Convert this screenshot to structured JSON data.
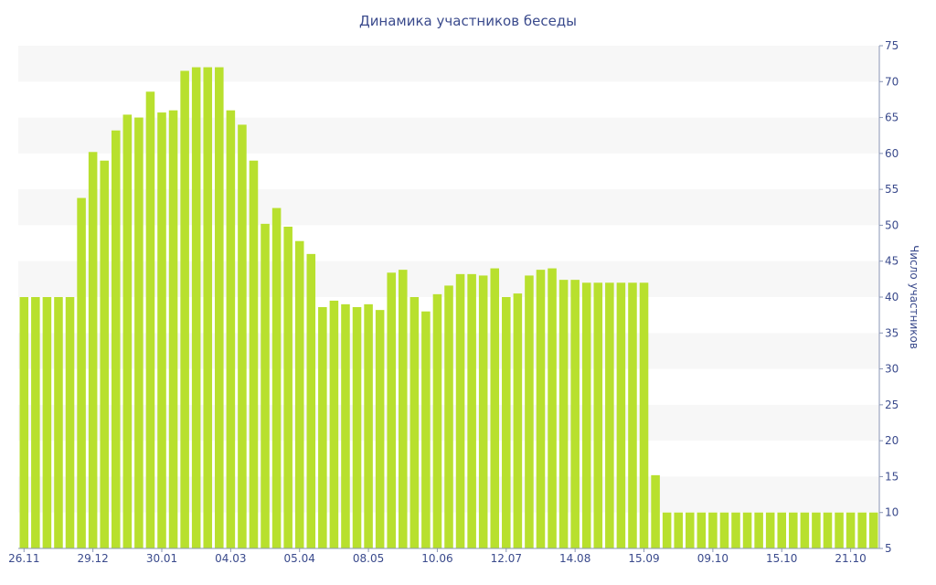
{
  "chart_data": {
    "type": "bar",
    "title": "Динамика участников беседы",
    "xlabel": "",
    "ylabel": "Число участников",
    "ylim": [
      5,
      75
    ],
    "y_ticks": [
      5,
      10,
      15,
      20,
      25,
      30,
      35,
      40,
      45,
      50,
      55,
      60,
      65,
      70,
      75
    ],
    "y_axis_side": "right",
    "grid": "alternating horizontal bands",
    "x_tick_labels": [
      {
        "index": 0,
        "label": "26.11"
      },
      {
        "index": 6,
        "label": "29.12"
      },
      {
        "index": 12,
        "label": "30.01"
      },
      {
        "index": 18,
        "label": "04.03"
      },
      {
        "index": 24,
        "label": "05.04"
      },
      {
        "index": 30,
        "label": "08.05"
      },
      {
        "index": 36,
        "label": "10.06"
      },
      {
        "index": 42,
        "label": "12.07"
      },
      {
        "index": 48,
        "label": "14.08"
      },
      {
        "index": 54,
        "label": "15.09"
      },
      {
        "index": 60,
        "label": "09.10"
      },
      {
        "index": 66,
        "label": "15.10"
      },
      {
        "index": 72,
        "label": "21.10"
      }
    ],
    "bar_color": "#b8e02e",
    "values": [
      40,
      40,
      40,
      40,
      40,
      53.8,
      60.2,
      59,
      63.2,
      65.4,
      65,
      68.6,
      65.7,
      66,
      71.5,
      72,
      72,
      72,
      66,
      64,
      59,
      50.2,
      52.4,
      49.8,
      47.8,
      46,
      38.6,
      39.5,
      39,
      38.6,
      39,
      38.2,
      43.4,
      43.8,
      40,
      38,
      40.4,
      41.6,
      43.2,
      43.2,
      43,
      44,
      40,
      40.5,
      43,
      43.8,
      44,
      42.4,
      42.4,
      42,
      42,
      42,
      42,
      42,
      42,
      15.2,
      10,
      10,
      10,
      10,
      10,
      10,
      10,
      10,
      10,
      10,
      10,
      10,
      10,
      10,
      10,
      10,
      10,
      10,
      10
    ]
  }
}
